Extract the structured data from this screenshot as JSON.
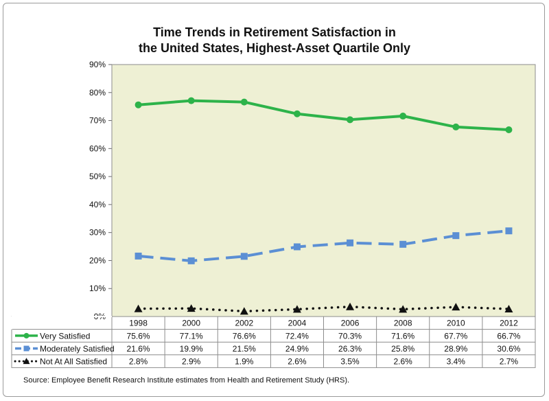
{
  "chart_data": {
    "type": "line",
    "title_line1": "Time Trends in Retirement Satisfaction in",
    "title_line2": "the United States, Highest-Asset Quartile Only",
    "categories": [
      "1998",
      "2000",
      "2002",
      "2004",
      "2006",
      "2008",
      "2010",
      "2012"
    ],
    "ylim": [
      0,
      90
    ],
    "yticks": [
      "0%",
      "10%",
      "20%",
      "30%",
      "40%",
      "50%",
      "60%",
      "70%",
      "80%",
      "90%"
    ],
    "grid": false,
    "series": [
      {
        "name": "Very Satisfied",
        "values": [
          75.6,
          77.1,
          76.6,
          72.4,
          70.3,
          71.6,
          67.7,
          66.7
        ],
        "labels": [
          "75.6%",
          "77.1%",
          "76.6%",
          "72.4%",
          "70.3%",
          "71.6%",
          "67.7%",
          "66.7%"
        ],
        "color": "#2db34a",
        "marker": "circle",
        "line": "solid"
      },
      {
        "name": "Moderately Satisfied",
        "values": [
          21.6,
          19.9,
          21.5,
          24.9,
          26.3,
          25.8,
          28.9,
          30.6
        ],
        "labels": [
          "21.6%",
          "19.9%",
          "21.5%",
          "24.9%",
          "26.3%",
          "25.8%",
          "28.9%",
          "30.6%"
        ],
        "color": "#5b8fd4",
        "marker": "square",
        "line": "dashed"
      },
      {
        "name": "Not At All Satisfied",
        "values": [
          2.8,
          2.9,
          1.9,
          2.6,
          3.5,
          2.6,
          3.4,
          2.7
        ],
        "labels": [
          "2.8%",
          "2.9%",
          "1.9%",
          "2.6%",
          "3.5%",
          "2.6%",
          "3.4%",
          "2.7%"
        ],
        "color": "#111111",
        "marker": "triangle",
        "line": "dotted"
      }
    ],
    "plot_background": "#eef0d4",
    "source": "Source: Employee Benefit Research Institute estimates from Health and Retirement Study (HRS)."
  }
}
